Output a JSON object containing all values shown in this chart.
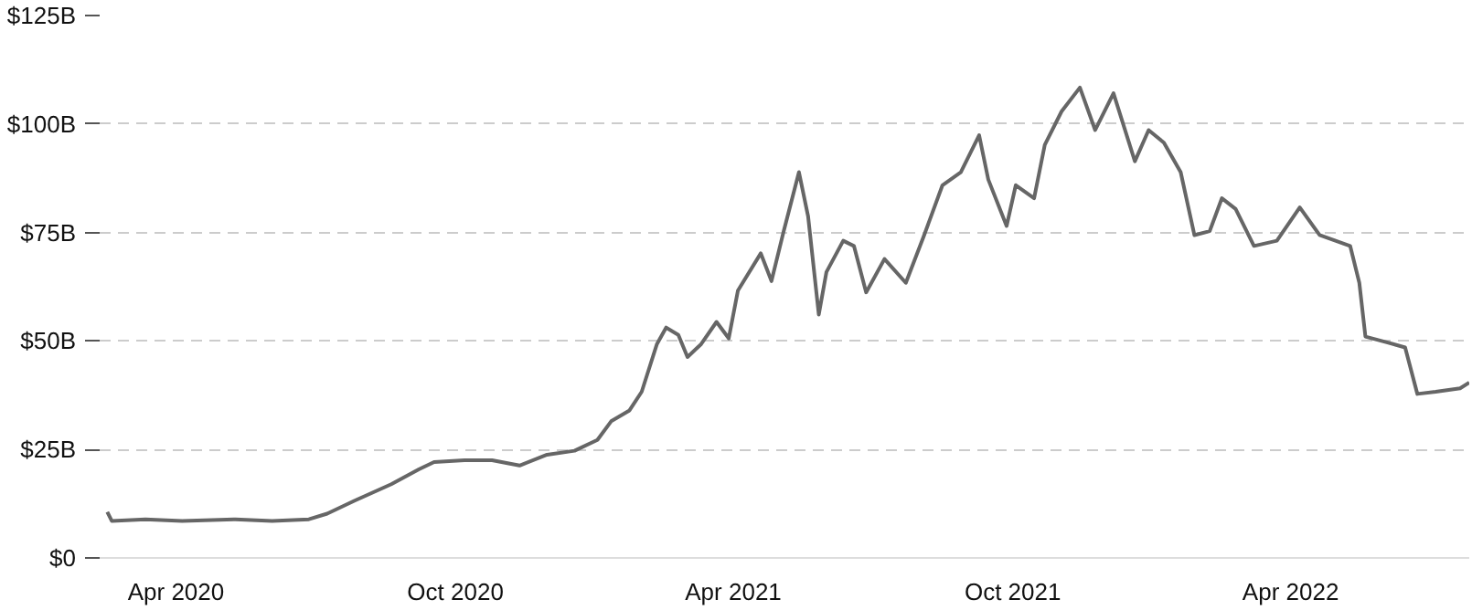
{
  "chart_data": {
    "type": "line",
    "x": [
      "2020-02-16",
      "2020-02-19",
      "2020-03-12",
      "2020-04-05",
      "2020-05-10",
      "2020-06-03",
      "2020-06-27",
      "2020-07-09",
      "2020-07-27",
      "2020-08-20",
      "2020-09-07",
      "2020-09-17",
      "2020-10-07",
      "2020-10-25",
      "2020-11-12",
      "2020-11-30",
      "2020-12-18",
      "2021-01-02",
      "2021-01-11",
      "2021-01-23",
      "2021-01-31",
      "2021-02-10",
      "2021-02-16",
      "2021-02-24",
      "2021-03-02",
      "2021-03-11",
      "2021-03-21",
      "2021-03-29",
      "2021-04-04",
      "2021-04-19",
      "2021-04-26",
      "2021-05-04",
      "2021-05-14",
      "2021-05-20",
      "2021-05-27",
      "2021-06-01",
      "2021-06-12",
      "2021-06-19",
      "2021-06-27",
      "2021-07-09",
      "2021-07-23",
      "2021-08-04",
      "2021-08-16",
      "2021-08-28",
      "2021-09-09",
      "2021-09-15",
      "2021-09-27",
      "2021-10-03",
      "2021-10-15",
      "2021-10-22",
      "2021-11-02",
      "2021-11-14",
      "2021-11-24",
      "2021-12-06",
      "2021-12-20",
      "2021-12-29",
      "2022-01-08",
      "2022-01-19",
      "2022-01-28",
      "2022-02-07",
      "2022-02-15",
      "2022-02-24",
      "2022-03-08",
      "2022-03-23",
      "2022-04-07",
      "2022-04-20",
      "2022-05-10",
      "2022-05-16",
      "2022-05-20",
      "2022-06-03",
      "2022-06-15",
      "2022-06-23",
      "2022-07-05",
      "2022-07-21",
      "2022-07-27"
    ],
    "series": [
      {
        "color": "#666666",
        "values": [
          10.6,
          8.5,
          8.9,
          8.5,
          8.9,
          8.5,
          8.9,
          10.2,
          13.2,
          17,
          20.4,
          22.1,
          22.5,
          22.5,
          21.3,
          23.8,
          24.7,
          27.2,
          31.5,
          34,
          38.3,
          49.3,
          53.1,
          51.4,
          46.3,
          49.3,
          54.4,
          50.6,
          61.6,
          70.2,
          63.8,
          75.3,
          88.9,
          78.7,
          56.1,
          65.9,
          73.1,
          71.9,
          61.2,
          68.9,
          63.4,
          74.4,
          85.9,
          88.9,
          97.4,
          87.2,
          76.5,
          85.9,
          82.9,
          95.2,
          102.9,
          108.4,
          98.6,
          107.1,
          91.4,
          98.6,
          95.7,
          88.9,
          74.4,
          75.3,
          82.9,
          80.4,
          71.9,
          73.1,
          80.8,
          74.4,
          71.9,
          63.4,
          51,
          49.7,
          48.5,
          37.8,
          38.3,
          39.1,
          40.4
        ]
      }
    ],
    "xlim": [
      "2020-02-11",
      "2022-07-27"
    ],
    "xticks": [
      {
        "value": "2020-04-01",
        "label": "Apr 2020"
      },
      {
        "value": "2020-10-01",
        "label": "Oct 2020"
      },
      {
        "value": "2021-04-01",
        "label": "Apr 2021"
      },
      {
        "value": "2021-10-01",
        "label": "Oct 2021"
      },
      {
        "value": "2022-04-01",
        "label": "Apr 2022"
      }
    ],
    "ylim": [
      0,
      125
    ],
    "yticks": [
      {
        "value": 0,
        "label": "$0"
      },
      {
        "value": 25,
        "label": "$25B"
      },
      {
        "value": 50,
        "label": "$50B"
      },
      {
        "value": 75,
        "label": "$75B"
      },
      {
        "value": 100,
        "label": "$100B"
      },
      {
        "value": 125,
        "label": "$125B"
      }
    ],
    "grid": "y",
    "line_style": "solid"
  }
}
